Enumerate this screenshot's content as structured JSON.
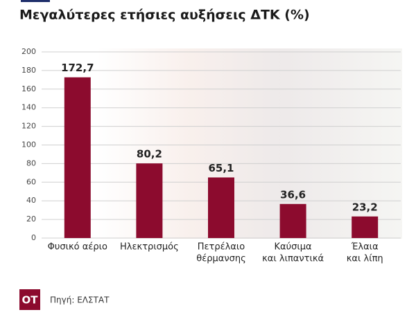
{
  "chart_data": {
    "type": "bar",
    "title": "Μεγαλύτερες ετήσιες αυξήσεις ΔΤΚ (%)",
    "categories": [
      [
        "Φυσικό αέριο"
      ],
      [
        "Ηλεκτρισμός"
      ],
      [
        "Πετρέλαιο",
        "θέρμανσης"
      ],
      [
        "Καύσιμα",
        "και λιπαντικά"
      ],
      [
        "Έλαια",
        "και λίπη"
      ]
    ],
    "values": [
      172.7,
      80.2,
      65.1,
      36.6,
      23.2
    ],
    "value_labels": [
      "172,7",
      "80,2",
      "65,1",
      "36,6",
      "23,2"
    ],
    "color": "#8c0b2e",
    "ylim": [
      0,
      200
    ],
    "yticks": [
      0,
      20,
      40,
      60,
      80,
      100,
      120,
      140,
      160,
      180,
      200
    ],
    "grid": true,
    "logo": "ΟΤ",
    "source": "Πηγή: ΕΛΣΤΑΤ"
  }
}
